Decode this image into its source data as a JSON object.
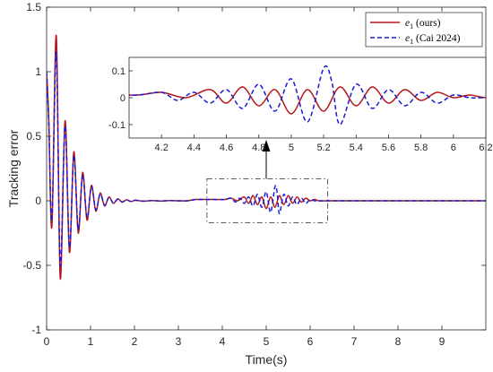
{
  "chart_data": {
    "type": "line",
    "xlabel": "Time(s)",
    "ylabel": "Tracking error",
    "xlim": [
      0,
      10
    ],
    "ylim": [
      -1,
      1.5
    ],
    "xticks": [
      0,
      1,
      2,
      3,
      4,
      5,
      6,
      7,
      8,
      9
    ],
    "yticks": [
      -1,
      -0.5,
      0,
      0.5,
      1,
      1.5
    ],
    "xtick_labels": [
      "0",
      "1",
      "2",
      "3",
      "4",
      "5",
      "6",
      "7",
      "8",
      "9"
    ],
    "ytick_labels": [
      "-1",
      "-0.5",
      "0",
      "0.5",
      "1",
      "1.5"
    ],
    "legend_position": "top-right",
    "grid": false,
    "series": [
      {
        "name": "e1 (ours)",
        "legend_label_tex": [
          "e",
          "1",
          " (ours)"
        ],
        "color": "#b5171a",
        "style": "solid",
        "x": [
          0.0,
          0.05,
          0.12,
          0.22,
          0.31,
          0.42,
          0.52,
          0.62,
          0.72,
          0.82,
          0.92,
          1.02,
          1.12,
          1.22,
          1.32,
          1.42,
          1.52,
          1.62,
          1.72,
          1.82,
          1.92,
          2.02,
          2.2,
          2.4,
          2.6,
          2.8,
          3.0,
          3.2,
          3.4,
          3.6,
          3.8,
          4.05,
          4.2,
          4.35,
          4.5,
          4.6,
          4.7,
          4.8,
          4.9,
          5.0,
          5.1,
          5.2,
          5.3,
          5.4,
          5.5,
          5.6,
          5.7,
          5.8,
          5.9,
          6.0,
          6.1,
          6.2,
          6.4,
          7.0,
          8.0,
          9.0,
          10.0
        ],
        "y": [
          1.0,
          0.62,
          -0.2,
          1.28,
          -0.6,
          0.62,
          -0.4,
          0.38,
          -0.25,
          0.22,
          -0.15,
          0.12,
          -0.08,
          0.06,
          -0.04,
          0.03,
          -0.02,
          0.015,
          -0.01,
          0.008,
          -0.006,
          0.004,
          -0.003,
          0.002,
          -0.002,
          0.002,
          0.0,
          0.0,
          0.01,
          0.01,
          0.01,
          0.01,
          0.02,
          0.0,
          0.03,
          -0.02,
          0.04,
          -0.03,
          0.03,
          -0.06,
          0.03,
          -0.05,
          0.04,
          -0.03,
          0.04,
          -0.02,
          0.03,
          -0.01,
          0.02,
          0.0,
          0.01,
          0.0,
          0.0,
          0.0,
          0.0,
          0.0,
          0.0
        ]
      },
      {
        "name": "e1 (Cai 2024)",
        "legend_label_tex": [
          "e",
          "1",
          " (Cai 2024)"
        ],
        "color": "#1a1ad6",
        "style": "dashed",
        "x": [
          0.0,
          0.05,
          0.12,
          0.22,
          0.31,
          0.42,
          0.52,
          0.62,
          0.72,
          0.82,
          0.92,
          1.02,
          1.12,
          1.22,
          1.32,
          1.42,
          1.52,
          1.62,
          1.72,
          1.82,
          1.92,
          2.02,
          2.2,
          2.4,
          2.6,
          2.8,
          3.0,
          3.2,
          3.4,
          3.6,
          3.8,
          4.05,
          4.2,
          4.3,
          4.4,
          4.5,
          4.6,
          4.7,
          4.8,
          4.9,
          5.0,
          5.1,
          5.2,
          5.25,
          5.3,
          5.4,
          5.5,
          5.6,
          5.7,
          5.8,
          5.9,
          6.0,
          6.1,
          6.2,
          6.4,
          7.0,
          8.0,
          9.0,
          10.0
        ],
        "y": [
          1.0,
          0.6,
          -0.15,
          1.15,
          -0.5,
          0.58,
          -0.36,
          0.35,
          -0.22,
          0.2,
          -0.13,
          0.11,
          -0.07,
          0.05,
          -0.035,
          0.025,
          -0.018,
          0.013,
          -0.009,
          0.007,
          -0.005,
          0.004,
          -0.003,
          0.002,
          -0.002,
          0.002,
          0.0,
          0.0,
          0.01,
          0.01,
          0.01,
          0.01,
          0.02,
          -0.01,
          0.02,
          -0.02,
          0.03,
          -0.04,
          0.05,
          -0.05,
          0.07,
          -0.09,
          0.11,
          0.06,
          -0.1,
          0.05,
          -0.04,
          0.03,
          -0.03,
          0.02,
          -0.02,
          0.01,
          0.0,
          0.0,
          0.0,
          0.0,
          0.0,
          0.0,
          0.0
        ]
      }
    ],
    "inset": {
      "xlim": [
        4.0,
        6.2
      ],
      "ylim": [
        -0.15,
        0.15
      ],
      "xticks": [
        4.2,
        4.4,
        4.6,
        4.8,
        5,
        5.2,
        5.4,
        5.6,
        5.8,
        6,
        6.2
      ],
      "yticks": [
        -0.1,
        0,
        0.1
      ],
      "xtick_labels": [
        "4.2",
        "4.4",
        "4.6",
        "4.8",
        "5",
        "5.2",
        "5.4",
        "5.6",
        "5.8",
        "6",
        "6.2"
      ],
      "ytick_labels": [
        "-0.1",
        "0",
        "0.1"
      ],
      "zoom_region": {
        "x": [
          3.65,
          6.4
        ],
        "y": [
          -0.17,
          0.17
        ]
      }
    }
  }
}
